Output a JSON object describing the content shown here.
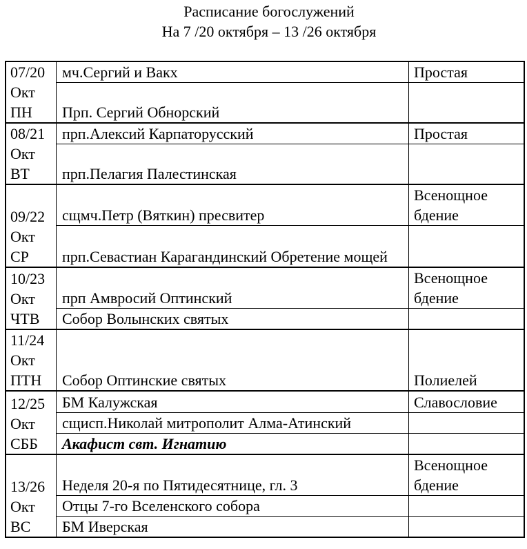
{
  "header": {
    "title": "Расписание богослужений",
    "subtitle": "На  7 /20 октября  – 13 /26 октября"
  },
  "days": [
    {
      "date": "07/20",
      "month": "Окт",
      "weekday": "ПН",
      "entries": [
        {
          "name": "мч.Сергий и Вакх",
          "service": "Простая"
        },
        {
          "name": "Прп. Сергий Обнорский",
          "service": ""
        }
      ]
    },
    {
      "date": "08/21",
      "month": "Окт",
      "weekday": "ВТ",
      "entries": [
        {
          "name": "прп.Алексий Карпаторусский",
          "service": "Простая"
        },
        {
          "name": "прп.Пелагия Палестинская",
          "service": ""
        }
      ]
    },
    {
      "date": "09/22",
      "month": "Окт",
      "weekday": "СР",
      "entries": [
        {
          "name": "сщмч.Петр (Вяткин) пресвитер",
          "service": "Всенощное бдение"
        },
        {
          "name": "прп.Севастиан Карагандинский Обретение мощей",
          "service": ""
        }
      ]
    },
    {
      "date": "10/23",
      "month": "Окт",
      "weekday": "ЧТВ",
      "entries": [
        {
          "name": "прп Амвросий Оптинский",
          "service": "Всенощное бдение"
        },
        {
          "name": "Собор Волынских святых",
          "service": ""
        }
      ]
    },
    {
      "date": "11/24",
      "month": "Окт",
      "weekday": "ПТН",
      "entries": [
        {
          "name": "Собор Оптинские святых",
          "service": "Полиелей"
        }
      ]
    },
    {
      "date": "12/25",
      "month": "Окт",
      "weekday": "СББ",
      "entries": [
        {
          "name": "БМ Калужская",
          "service": "Славословие"
        },
        {
          "name": "сщисп.Николай митрополит Алма-Атинский",
          "service": ""
        },
        {
          "name": "Акафист свт. Игнатию",
          "service": ""
        }
      ]
    },
    {
      "date": "13/26",
      "month": "Окт",
      "weekday": "ВС",
      "entries": [
        {
          "name": "Неделя 20-я по Пятидесятнице, гл. 3",
          "service": "Всенощное бдение"
        },
        {
          "name": "Отцы 7-го Вселенского собора",
          "service": ""
        },
        {
          "name": "БМ Иверская",
          "service": ""
        }
      ]
    }
  ]
}
